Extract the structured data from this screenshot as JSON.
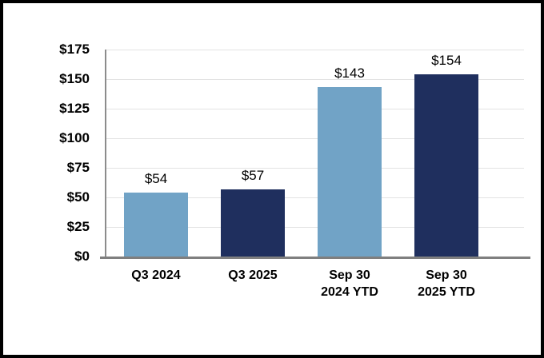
{
  "window": {
    "background_color": "#ffffff",
    "frame_border_color": "#000000"
  },
  "chart_data": {
    "type": "bar",
    "title": "",
    "xlabel": "",
    "ylabel": "",
    "categories": [
      "Q3 2024",
      "Q3 2025",
      "Sep 30\n2024 YTD",
      "Sep 30\n2025 YTD"
    ],
    "values": [
      54,
      57,
      143,
      154
    ],
    "data_labels": [
      "$54",
      "$57",
      "$143",
      "$154"
    ],
    "bar_colors": [
      "#71A3C6",
      "#1F2F5E",
      "#71A3C6",
      "#1F2F5E"
    ],
    "y_ticks": [
      "$0",
      "$25",
      "$50",
      "$75",
      "$100",
      "$125",
      "$150",
      "$175"
    ],
    "y_tick_values": [
      0,
      25,
      50,
      75,
      100,
      125,
      150,
      175
    ],
    "ylim": [
      0,
      175
    ],
    "grid": true,
    "legend": "none",
    "colors": {
      "light_blue": "#71A3C6",
      "dark_navy": "#1F2F5E",
      "gridline": "#e3e3e3",
      "y_axis_line": "#8c8c8c",
      "x_axis_line": "#7f7f7f",
      "text": "#000000"
    }
  }
}
